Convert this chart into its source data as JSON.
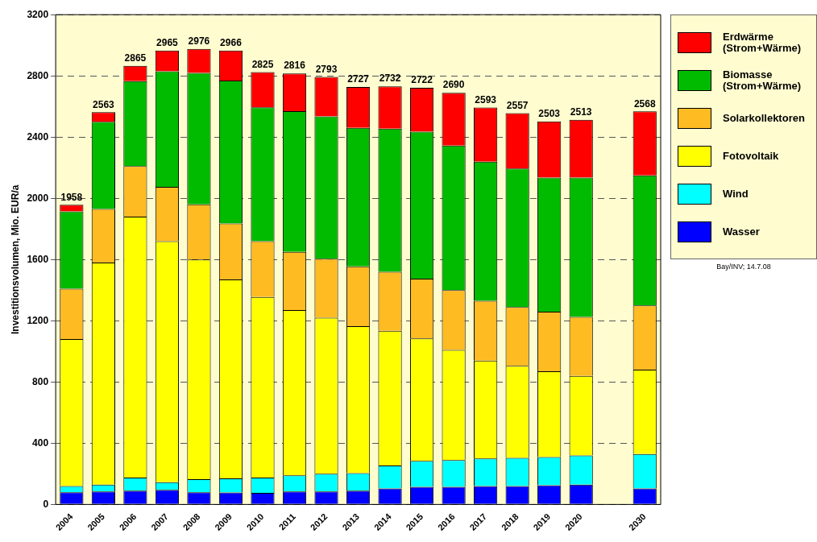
{
  "chart_data": {
    "type": "bar",
    "stacked": true,
    "ylabel": "Investitionsvolumen, Mio. EUR/a",
    "categories": [
      "2004",
      "2005",
      "2006",
      "2007",
      "2008",
      "2009",
      "2010",
      "2011",
      "2012",
      "2013",
      "2014",
      "2015",
      "2016",
      "2017",
      "2018",
      "2019",
      "2020",
      null,
      "2030"
    ],
    "series": [
      {
        "name": "Wasser",
        "color": "#0000ff",
        "values": [
          80,
          85,
          90,
          95,
          80,
          78,
          75,
          85,
          85,
          90,
          105,
          115,
          115,
          120,
          120,
          125,
          130,
          null,
          105
        ]
      },
      {
        "name": "Wind",
        "color": "#00ffff",
        "values": [
          40,
          45,
          85,
          50,
          85,
          92,
          100,
          105,
          115,
          115,
          150,
          170,
          175,
          180,
          185,
          185,
          190,
          null,
          225
        ]
      },
      {
        "name": "Fotovoltaik",
        "color": "#ffff00",
        "values": [
          960,
          1450,
          1705,
          1575,
          1435,
          1300,
          1180,
          1080,
          1020,
          960,
          880,
          800,
          720,
          640,
          600,
          560,
          520,
          null,
          550
        ]
      },
      {
        "name": "Solarkollektoren",
        "color": "#ffbb22",
        "values": [
          330,
          350,
          330,
          355,
          360,
          365,
          365,
          380,
          385,
          390,
          385,
          390,
          390,
          390,
          385,
          390,
          385,
          null,
          420
        ]
      },
      {
        "name": "Biomasse (Strom+Wärme)",
        "color": "#00bb00",
        "values": [
          505,
          570,
          555,
          755,
          860,
          935,
          875,
          920,
          930,
          905,
          935,
          960,
          945,
          910,
          905,
          875,
          910,
          null,
          850
        ]
      },
      {
        "name": "Erdwärme (Strom+Wärme)",
        "color": "#ff0000",
        "values": [
          43,
          63,
          100,
          135,
          156,
          196,
          230,
          246,
          258,
          267,
          277,
          287,
          345,
          353,
          362,
          368,
          378,
          null,
          418
        ]
      }
    ],
    "totals": [
      "1958",
      "2563",
      "2865",
      "2965",
      "2976",
      "2966",
      "2825",
      "2816",
      "2793",
      "2727",
      "2732",
      "2722",
      "2690",
      "2593",
      "2557",
      "2503",
      "2513",
      null,
      "2568"
    ],
    "ylim": [
      0,
      3200
    ],
    "yticks": [
      0,
      400,
      800,
      1200,
      1600,
      2000,
      2400,
      2800,
      3200
    ],
    "grid": "y",
    "legend": "right",
    "annotations": [
      "Bay/INV; 14.7.08"
    ]
  }
}
